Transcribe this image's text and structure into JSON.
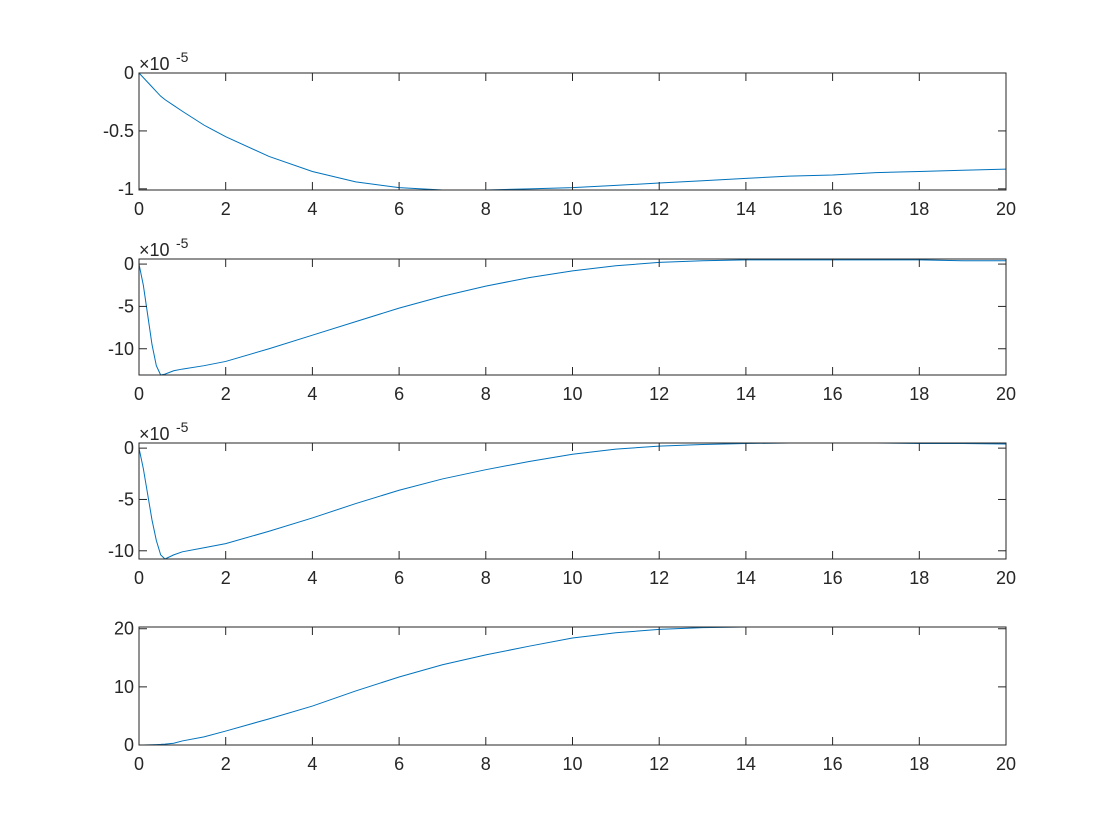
{
  "chart_data": [
    {
      "type": "line",
      "color": "#0072bd",
      "x": [
        0,
        0.1,
        0.2,
        0.3,
        0.4,
        0.5,
        0.6,
        0.8,
        1,
        1.5,
        2,
        3,
        4,
        5,
        6,
        7,
        8,
        9,
        10,
        11,
        12,
        13,
        14,
        15,
        16,
        17,
        18,
        19,
        20
      ],
      "values": [
        0,
        -0.04,
        -0.08,
        -0.12,
        -0.16,
        -0.2,
        -0.23,
        -0.28,
        -0.33,
        -0.45,
        -0.55,
        -0.72,
        -0.85,
        -0.94,
        -0.99,
        -1.01,
        -1.01,
        -1.0,
        -0.99,
        -0.97,
        -0.95,
        -0.93,
        -0.91,
        -0.89,
        -0.88,
        -0.86,
        -0.85,
        -0.84,
        -0.83
      ],
      "xlim": [
        0,
        20
      ],
      "xticks": [
        0,
        2,
        4,
        6,
        8,
        10,
        12,
        14,
        16,
        18,
        20
      ],
      "ylim": [
        -1.01,
        0
      ],
      "yticks": [
        0,
        -0.5,
        -1
      ],
      "y_multiplier": {
        "base": "×10",
        "exponent": "-5"
      }
    },
    {
      "type": "line",
      "color": "#0072bd",
      "x": [
        0,
        0.1,
        0.2,
        0.3,
        0.4,
        0.5,
        0.6,
        0.8,
        1,
        1.5,
        2,
        3,
        4,
        5,
        6,
        7,
        8,
        9,
        10,
        11,
        12,
        13,
        14,
        15,
        16,
        17,
        18,
        19,
        20
      ],
      "values": [
        0,
        -2.5,
        -6,
        -9.5,
        -12,
        -13.1,
        -13,
        -12.6,
        -12.4,
        -12,
        -11.5,
        -10,
        -8.4,
        -6.8,
        -5.2,
        -3.8,
        -2.6,
        -1.6,
        -0.8,
        -0.2,
        0.2,
        0.4,
        0.5,
        0.5,
        0.5,
        0.5,
        0.5,
        0.4,
        0.4
      ],
      "xlim": [
        0,
        20
      ],
      "xticks": [
        0,
        2,
        4,
        6,
        8,
        10,
        12,
        14,
        16,
        18,
        20
      ],
      "ylim": [
        -13.1,
        0.6
      ],
      "yticks": [
        0,
        -5,
        -10
      ],
      "y_multiplier": {
        "base": "×10",
        "exponent": "-5"
      }
    },
    {
      "type": "line",
      "color": "#0072bd",
      "x": [
        0,
        0.1,
        0.2,
        0.3,
        0.4,
        0.5,
        0.6,
        0.8,
        1,
        1.5,
        2,
        3,
        4,
        5,
        6,
        7,
        8,
        9,
        10,
        11,
        12,
        13,
        14,
        15,
        16,
        17,
        18,
        19,
        20
      ],
      "values": [
        0,
        -2,
        -4.5,
        -7,
        -9,
        -10.4,
        -10.8,
        -10.4,
        -10.1,
        -9.7,
        -9.3,
        -8.1,
        -6.8,
        -5.4,
        -4.1,
        -3,
        -2.1,
        -1.3,
        -0.6,
        -0.1,
        0.2,
        0.35,
        0.45,
        0.5,
        0.5,
        0.5,
        0.45,
        0.45,
        0.4
      ],
      "xlim": [
        0,
        20
      ],
      "xticks": [
        0,
        2,
        4,
        6,
        8,
        10,
        12,
        14,
        16,
        18,
        20
      ],
      "ylim": [
        -10.8,
        0.5
      ],
      "yticks": [
        0,
        -5,
        -10
      ],
      "y_multiplier": {
        "base": "×10",
        "exponent": "-5"
      }
    },
    {
      "type": "line",
      "color": "#0072bd",
      "x": [
        0,
        0.1,
        0.2,
        0.3,
        0.4,
        0.5,
        0.6,
        0.8,
        1,
        1.5,
        2,
        3,
        4,
        5,
        6,
        7,
        8,
        9,
        10,
        11,
        12,
        13,
        14,
        15,
        16,
        17,
        18,
        19,
        20
      ],
      "values": [
        0,
        0,
        0.02,
        0.04,
        0.07,
        0.1,
        0.15,
        0.3,
        0.7,
        1.4,
        2.4,
        4.5,
        6.7,
        9.3,
        11.7,
        13.8,
        15.5,
        17,
        18.4,
        19.3,
        19.9,
        20.2,
        20.3,
        20.3,
        20.3,
        20.3,
        20.3,
        20.3,
        20.3
      ],
      "xlim": [
        0,
        20
      ],
      "xticks": [
        0,
        2,
        4,
        6,
        8,
        10,
        12,
        14,
        16,
        18,
        20
      ],
      "ylim": [
        0,
        20.3
      ],
      "yticks": [
        0,
        10,
        20
      ]
    }
  ]
}
